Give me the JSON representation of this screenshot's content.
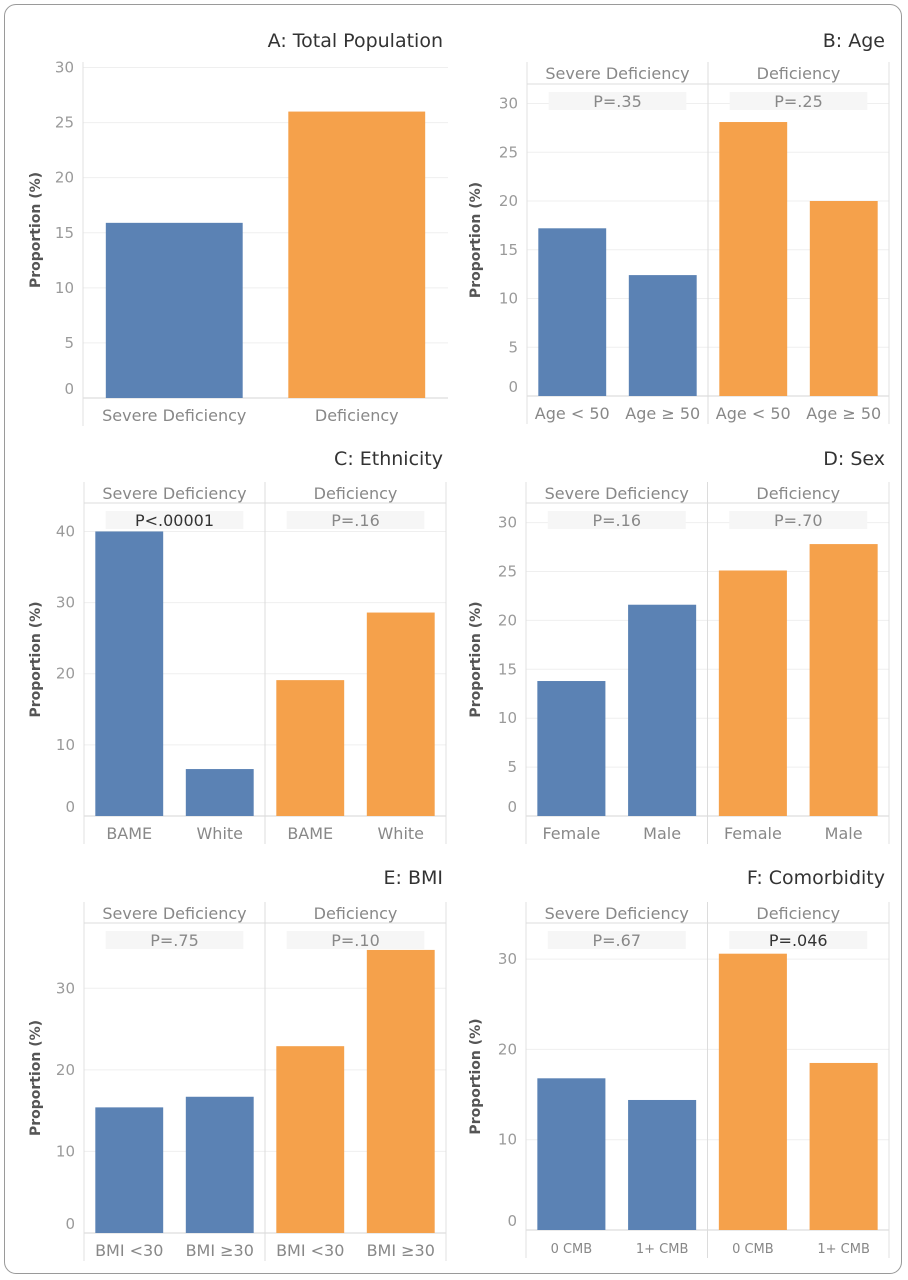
{
  "colors": {
    "severe": "#5b82b4",
    "deficiency": "#f5a14b"
  },
  "chart_data": [
    {
      "type": "bar",
      "title": "A: Total Population",
      "ylabel": "Proportion (%)",
      "ylim": [
        0,
        30.5
      ],
      "yticks": [
        0,
        5,
        10,
        15,
        20,
        25,
        30
      ],
      "grid": true,
      "facets": [
        {
          "label": "",
          "p_value": "",
          "categories": [
            "Severe Deficiency",
            "Deficiency"
          ],
          "values": [
            15.9,
            26.0
          ],
          "colors": [
            "severe",
            "deficiency"
          ]
        }
      ]
    },
    {
      "type": "bar",
      "title": "B: Age",
      "ylabel": "Proportion (%)",
      "ylim": [
        0,
        32
      ],
      "yticks": [
        0,
        5,
        10,
        15,
        20,
        25,
        30
      ],
      "grid": true,
      "facets": [
        {
          "label": "Severe Deficiency",
          "p_value": "P=.35",
          "significant": false,
          "categories": [
            "Age < 50",
            "Age ≥ 50"
          ],
          "values": [
            17.2,
            12.4
          ],
          "colors": [
            "severe",
            "severe"
          ]
        },
        {
          "label": "Deficiency",
          "p_value": "P=.25",
          "significant": false,
          "categories": [
            "Age < 50",
            "Age ≥ 50"
          ],
          "values": [
            28.1,
            20.0
          ],
          "colors": [
            "deficiency",
            "deficiency"
          ]
        }
      ]
    },
    {
      "type": "bar",
      "title": "C: Ethnicity",
      "ylabel": "Proportion (%)",
      "ylim": [
        0,
        44
      ],
      "yticks": [
        0,
        10,
        20,
        30,
        40
      ],
      "grid": true,
      "facets": [
        {
          "label": "Severe Deficiency",
          "p_value": "P<.00001",
          "significant": true,
          "categories": [
            "BAME",
            "White"
          ],
          "values": [
            40.0,
            6.6
          ],
          "colors": [
            "severe",
            "severe"
          ]
        },
        {
          "label": "Deficiency",
          "p_value": "P=.16",
          "significant": false,
          "categories": [
            "BAME",
            "White"
          ],
          "values": [
            19.1,
            28.6
          ],
          "colors": [
            "deficiency",
            "deficiency"
          ]
        }
      ]
    },
    {
      "type": "bar",
      "title": "D: Sex",
      "ylabel": "Proportion (%)",
      "ylim": [
        0,
        32
      ],
      "yticks": [
        0,
        5,
        10,
        15,
        20,
        25,
        30
      ],
      "grid": true,
      "facets": [
        {
          "label": "Severe Deficiency",
          "p_value": "P=.16",
          "significant": false,
          "categories": [
            "Female",
            "Male"
          ],
          "values": [
            13.8,
            21.6
          ],
          "colors": [
            "severe",
            "severe"
          ]
        },
        {
          "label": "Deficiency",
          "p_value": "P=.70",
          "significant": false,
          "categories": [
            "Female",
            "Male"
          ],
          "values": [
            25.1,
            27.8
          ],
          "colors": [
            "deficiency",
            "deficiency"
          ]
        }
      ]
    },
    {
      "type": "bar",
      "title": "E: BMI",
      "ylabel": "Proportion (%)",
      "ylim": [
        0,
        38
      ],
      "yticks": [
        0,
        10,
        20,
        30
      ],
      "grid": true,
      "facets": [
        {
          "label": "Severe Deficiency",
          "p_value": "P=.75",
          "significant": false,
          "categories": [
            "BMI <30",
            "BMI ≥30"
          ],
          "values": [
            15.4,
            16.7
          ],
          "colors": [
            "severe",
            "severe"
          ]
        },
        {
          "label": "Deficiency",
          "p_value": "P=.10",
          "significant": false,
          "categories": [
            "BMI <30",
            "BMI ≥30"
          ],
          "values": [
            22.9,
            34.7
          ],
          "colors": [
            "deficiency",
            "deficiency"
          ]
        }
      ]
    },
    {
      "type": "bar",
      "title": "F: Comorbidity",
      "ylabel": "Proportion (%)",
      "ylim": [
        0,
        34
      ],
      "yticks": [
        0,
        10,
        20,
        30
      ],
      "grid": true,
      "facets": [
        {
          "label": "Severe Deficiency",
          "p_value": "P=.67",
          "significant": false,
          "categories": [
            "0 CMB",
            "1+ CMB"
          ],
          "values": [
            16.8,
            14.4
          ],
          "colors": [
            "severe",
            "severe"
          ]
        },
        {
          "label": "Deficiency",
          "p_value": "P=.046",
          "significant": true,
          "categories": [
            "0 CMB",
            "1+ CMB"
          ],
          "values": [
            30.6,
            18.5
          ],
          "colors": [
            "deficiency",
            "deficiency"
          ]
        }
      ]
    }
  ]
}
